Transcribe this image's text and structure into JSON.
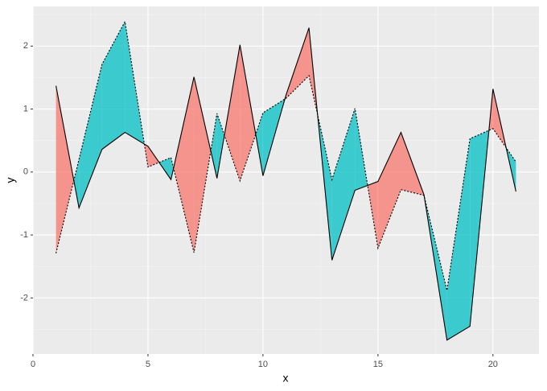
{
  "chart_data": {
    "type": "ribbon",
    "x_label": "x",
    "y_label": "y",
    "x": [
      1,
      2,
      3,
      4,
      5,
      6,
      7,
      8,
      9,
      10,
      11,
      12,
      13,
      14,
      15,
      16,
      17,
      18,
      19,
      20,
      21
    ],
    "series": [
      {
        "color": "#000000",
        "linestyle": "solid",
        "values": [
          1.37,
          -0.57,
          0.36,
          0.63,
          0.41,
          -0.12,
          1.51,
          -0.1,
          2.02,
          -0.06,
          1.22,
          2.29,
          -1.4,
          -0.29,
          -0.15,
          0.63,
          -0.36,
          -2.67,
          -2.45,
          1.32,
          -0.31
        ]
      },
      {
        "color": "#000000",
        "linestyle": "dotted",
        "values": [
          -1.29,
          0.2,
          1.71,
          2.39,
          0.08,
          0.23,
          -1.28,
          0.93,
          -0.14,
          0.94,
          1.17,
          1.53,
          -0.12,
          1.01,
          -1.21,
          -0.28,
          -0.37,
          -1.88,
          0.53,
          0.69,
          0.16
        ]
      }
    ],
    "fill_colors": [
      "#f8766d",
      "#00bfc4"
    ],
    "xlim": [
      0,
      22
    ],
    "ylim": [
      -2.89,
      2.63
    ],
    "xticks": [
      0,
      5,
      10,
      15,
      20
    ],
    "yticks": [
      -2,
      -1,
      0,
      1,
      2
    ],
    "grid": true
  }
}
